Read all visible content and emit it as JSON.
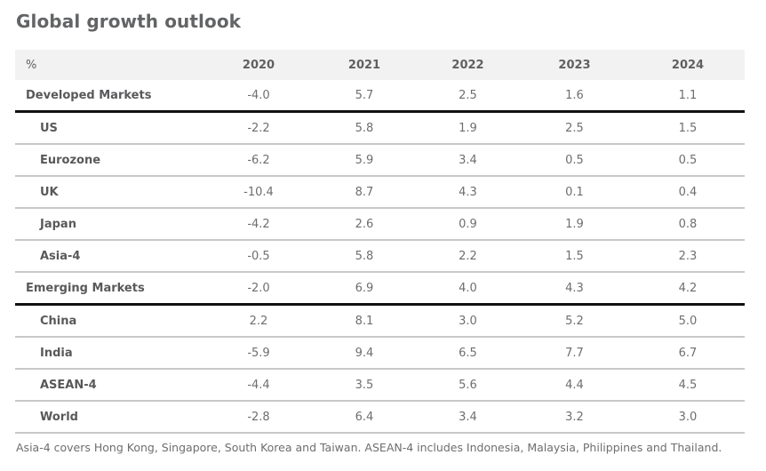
{
  "title": "Global growth outlook",
  "table": {
    "headers": [
      "%",
      "2020",
      "2021",
      "2022",
      "2023",
      "2024"
    ],
    "rows": [
      {
        "label": "Developed Markets",
        "group": true,
        "values": [
          "-4.0",
          "5.7",
          "2.5",
          "1.6",
          "1.1"
        ]
      },
      {
        "label": "US",
        "group": false,
        "values": [
          "-2.2",
          "5.8",
          "1.9",
          "2.5",
          "1.5"
        ]
      },
      {
        "label": "Eurozone",
        "group": false,
        "values": [
          "-6.2",
          "5.9",
          "3.4",
          "0.5",
          "0.5"
        ]
      },
      {
        "label": "UK",
        "group": false,
        "values": [
          "-10.4",
          "8.7",
          "4.3",
          "0.1",
          "0.4"
        ]
      },
      {
        "label": "Japan",
        "group": false,
        "values": [
          "-4.2",
          "2.6",
          "0.9",
          "1.9",
          "0.8"
        ]
      },
      {
        "label": "Asia-4",
        "group": false,
        "values": [
          "-0.5",
          "5.8",
          "2.2",
          "1.5",
          "2.3"
        ]
      },
      {
        "label": "Emerging Markets",
        "group": true,
        "values": [
          "-2.0",
          "6.9",
          "4.0",
          "4.3",
          "4.2"
        ]
      },
      {
        "label": "China",
        "group": false,
        "values": [
          "2.2",
          "8.1",
          "3.0",
          "5.2",
          "5.0"
        ]
      },
      {
        "label": "India",
        "group": false,
        "values": [
          "-5.9",
          "9.4",
          "6.5",
          "7.7",
          "6.7"
        ]
      },
      {
        "label": "ASEAN-4",
        "group": false,
        "values": [
          "-4.4",
          "3.5",
          "5.6",
          "4.4",
          "4.5"
        ]
      },
      {
        "label": "World",
        "group": false,
        "values": [
          "-2.8",
          "6.4",
          "3.4",
          "3.2",
          "3.0"
        ]
      }
    ]
  },
  "footnote": "Asia-4 covers Hong Kong, Singapore, South Korea and Taiwan. ASEAN-4 includes Indonesia, Malaysia, Philippines and Thailand."
}
